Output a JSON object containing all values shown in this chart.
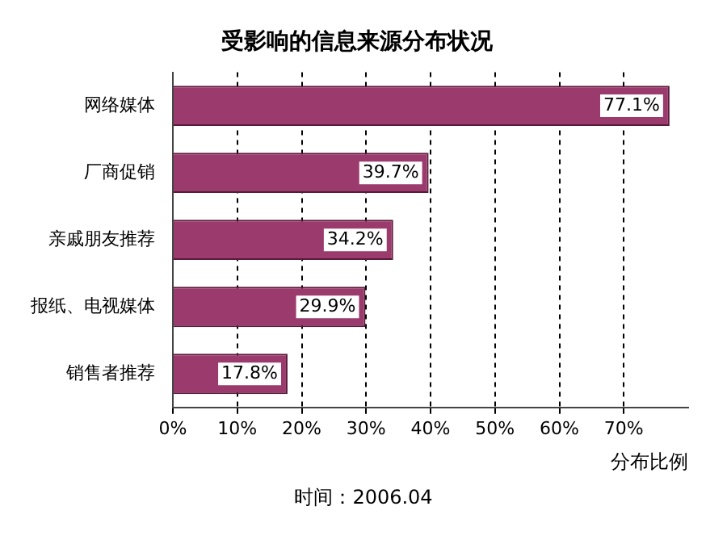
{
  "chart_data": {
    "type": "bar",
    "orientation": "horizontal",
    "title": "受影响的信息来源分布状况",
    "xlabel": "分布比例",
    "categories": [
      "网络媒体",
      "厂商促销",
      "亲戚朋友推荐",
      "报纸、电视媒体",
      "销售者推荐"
    ],
    "values": [
      77.1,
      39.7,
      34.2,
      29.9,
      17.8
    ],
    "value_labels": [
      "77.1%",
      "39.7%",
      "34.2%",
      "29.9%",
      "17.8%"
    ],
    "color": "#9b3a6c",
    "xlim": [
      0,
      80
    ],
    "xticks": [
      {
        "value": 0,
        "label": "0%"
      },
      {
        "value": 10,
        "label": "10%"
      },
      {
        "value": 20,
        "label": "20%"
      },
      {
        "value": 30,
        "label": "30%"
      },
      {
        "value": 40,
        "label": "40%"
      },
      {
        "value": 50,
        "label": "50%"
      },
      {
        "value": 60,
        "label": "60%"
      },
      {
        "value": 70,
        "label": "70%"
      }
    ],
    "grid": "x",
    "annotations": [
      "时间：2006.04"
    ]
  }
}
